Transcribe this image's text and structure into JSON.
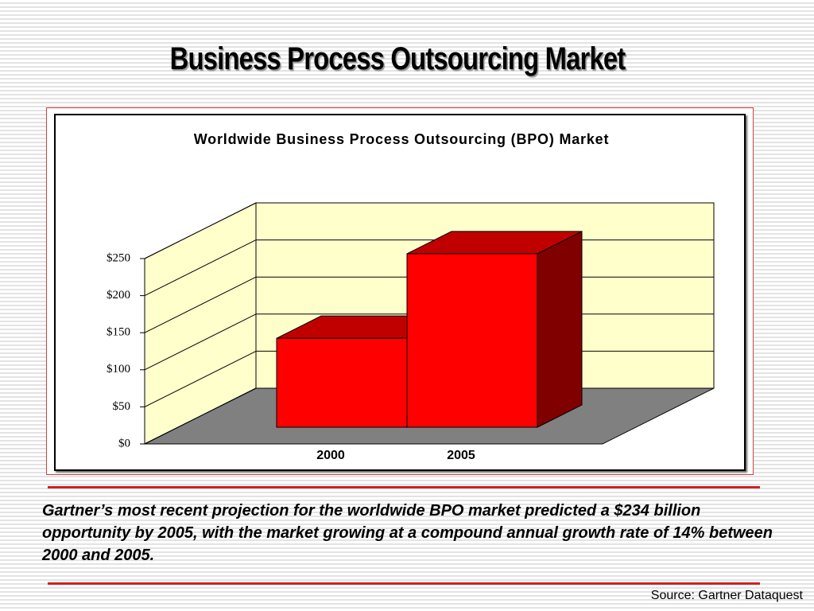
{
  "slide_title": "Business Process Outsourcing Market",
  "chart_data": {
    "type": "bar3d",
    "title": "Worldwide Business Process Outsourcing (BPO) Market",
    "categories": [
      "2000",
      "2005"
    ],
    "values": [
      120,
      234
    ],
    "colors": {
      "front": "#ff0000",
      "top": "#c00000",
      "side": "#800000"
    },
    "ylim": [
      0,
      250
    ],
    "yticks": [
      {
        "value": 0,
        "label": "$0"
      },
      {
        "value": 50,
        "label": "$50"
      },
      {
        "value": 100,
        "label": "$100"
      },
      {
        "value": 150,
        "label": "$150"
      },
      {
        "value": 200,
        "label": "$200"
      },
      {
        "value": 250,
        "label": "$250"
      }
    ],
    "grid": true
  },
  "body_text": "Gartner’s most recent projection for the worldwide BPO market predicted a $234 billion opportunity by 2005, with the market growing at a compound annual growth rate of 14% between 2000 and 2005.",
  "source": "Source: Gartner Dataquest"
}
